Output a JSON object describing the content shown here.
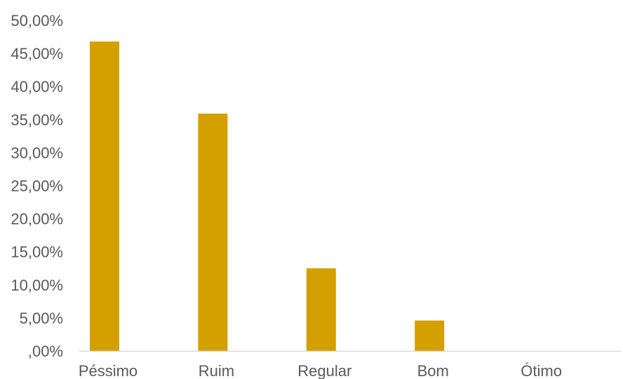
{
  "chart_data": {
    "type": "bar",
    "title": "",
    "xlabel": "",
    "ylabel": "",
    "categories": [
      "Péssimo",
      "Ruim",
      "Regular",
      "Bom",
      "Ótimo"
    ],
    "values": [
      46.8,
      35.9,
      12.5,
      4.6,
      0
    ],
    "ylim": [
      0,
      50
    ],
    "y_ticks": [
      0,
      5,
      10,
      15,
      20,
      25,
      30,
      35,
      40,
      45,
      50
    ],
    "y_tick_labels": [
      ",00%",
      "5,00%",
      "10,00%",
      "15,00%",
      "20,00%",
      "25,00%",
      "30,00%",
      "35,00%",
      "40,00%",
      "45,00%",
      "50,00%"
    ],
    "grid": false,
    "legend": "none",
    "colors": {
      "bar": "#D4A000",
      "axis_line": "#D9D9D9",
      "text": "#595959"
    }
  }
}
